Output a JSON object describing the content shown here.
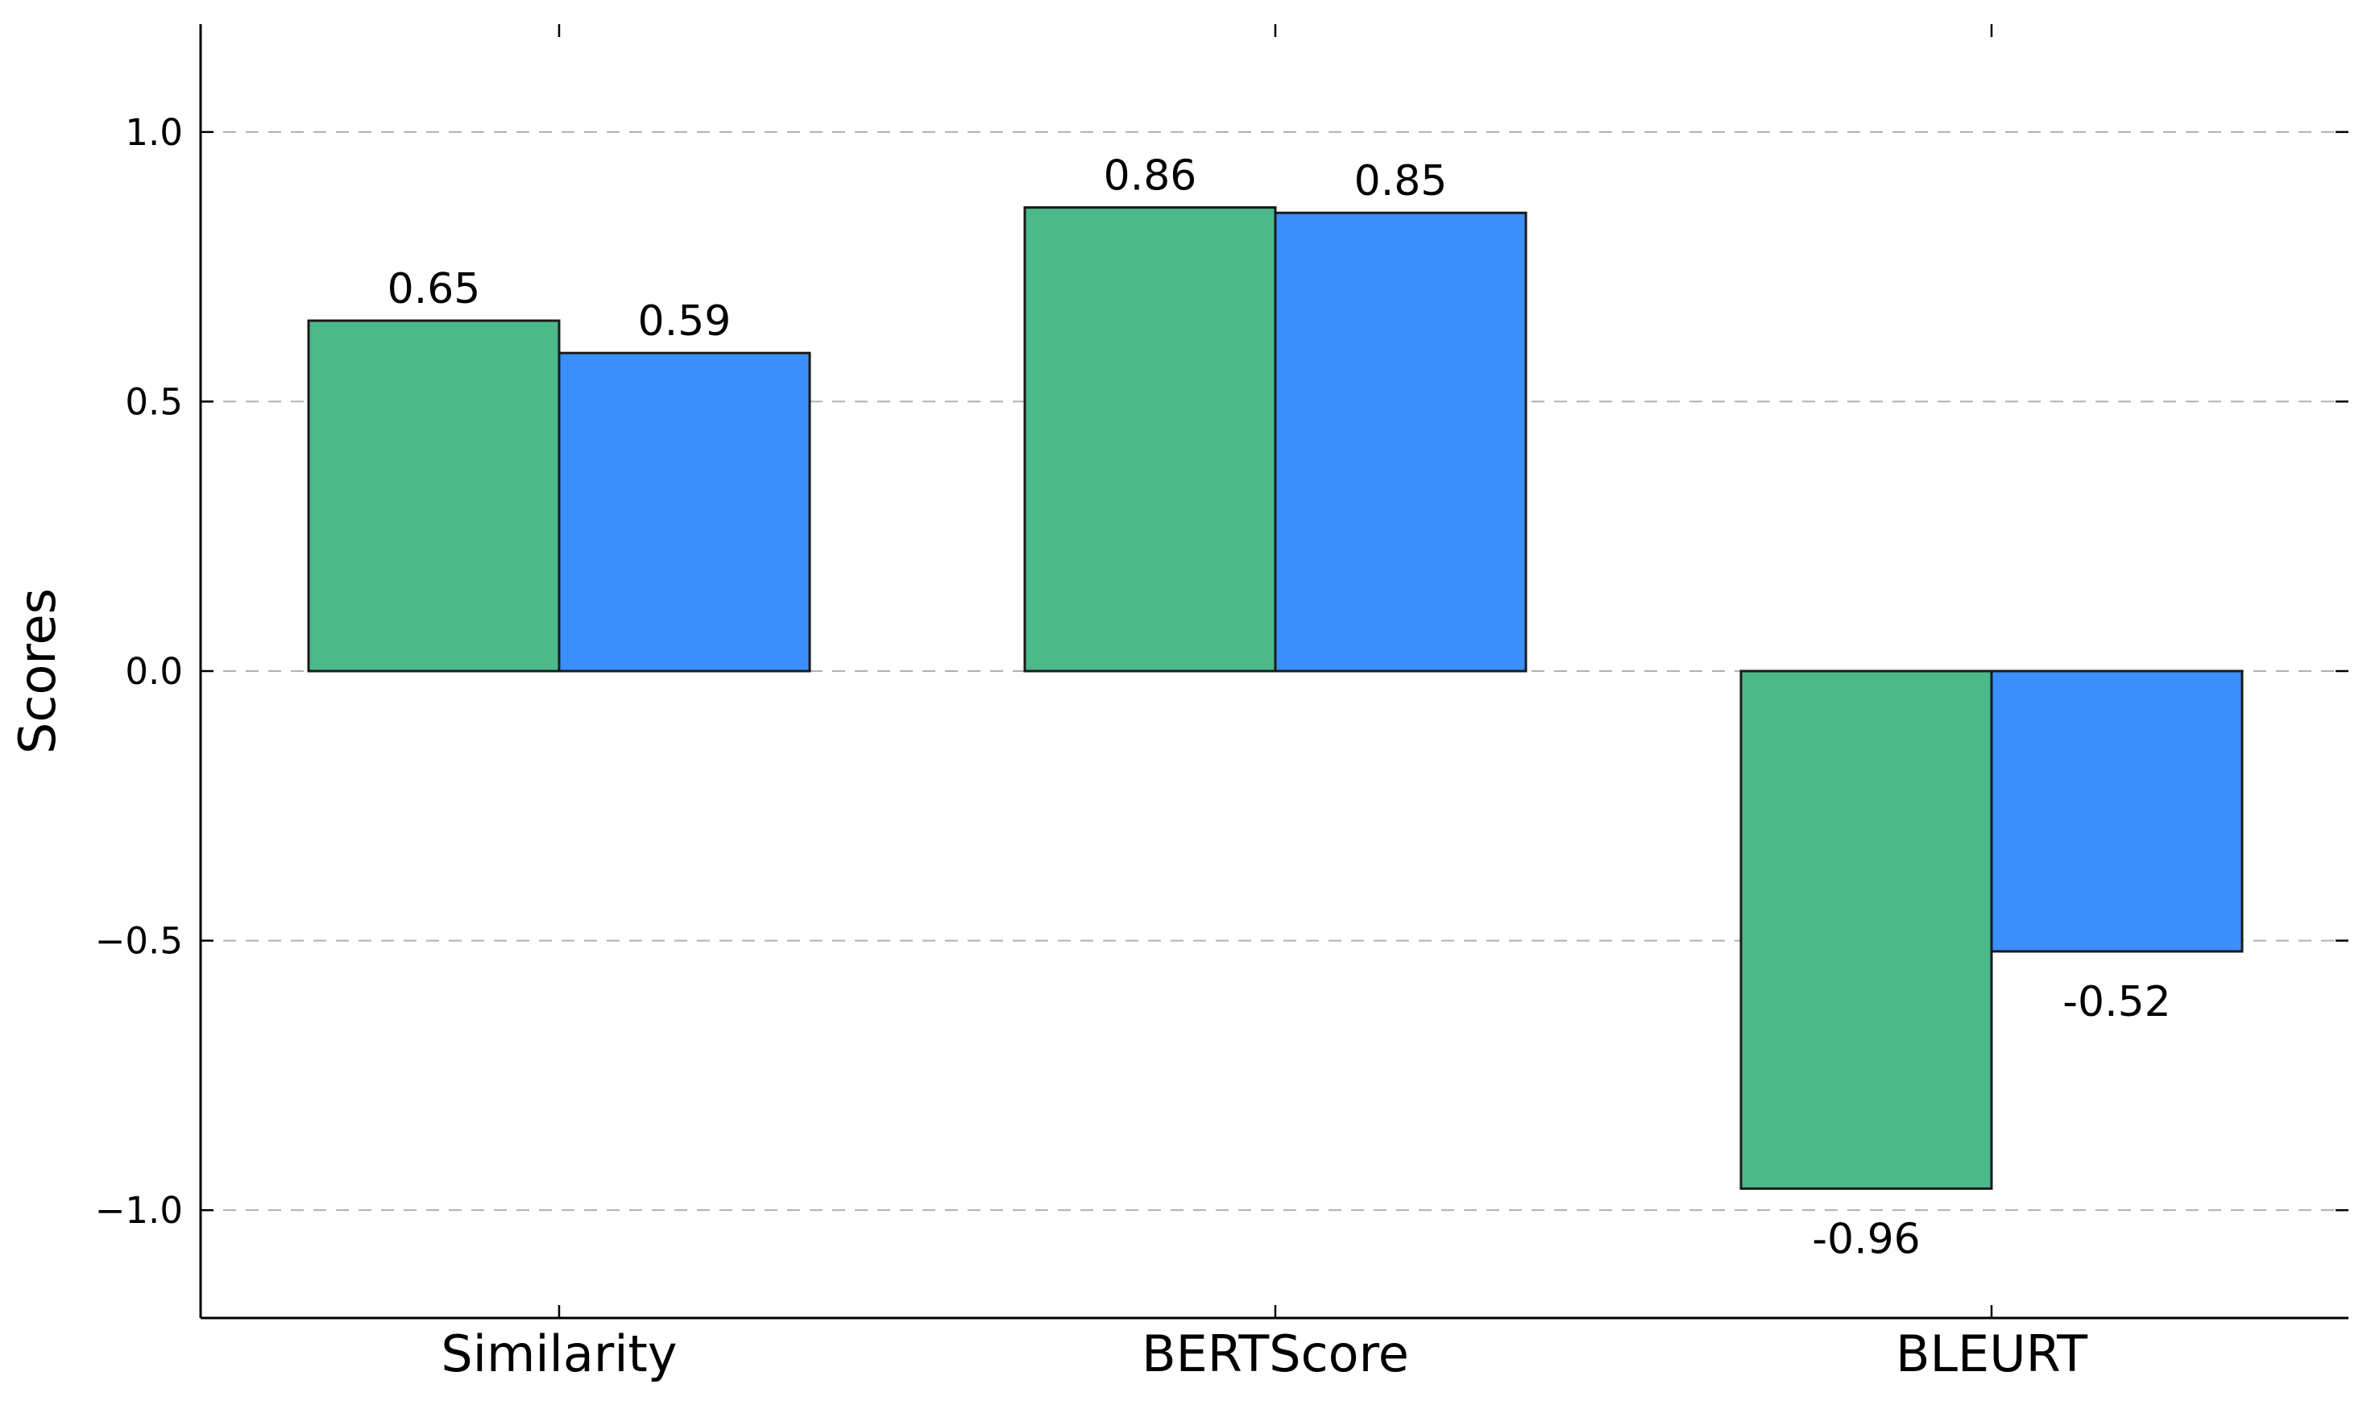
{
  "chart_data": {
    "type": "bar",
    "title": "",
    "xlabel": "",
    "ylabel": "Scores",
    "categories": [
      "Similarity",
      "BERTScore",
      "BLEURT"
    ],
    "series": [
      {
        "values": [
          0.65,
          0.86,
          -0.96
        ],
        "labels": [
          "0.65",
          "0.86",
          "-0.96"
        ],
        "color": "#4bb98a"
      },
      {
        "values": [
          0.59,
          0.85,
          -0.52
        ],
        "labels": [
          "0.59",
          "0.85",
          "-0.52"
        ],
        "color": "#3a8ffd"
      }
    ],
    "ylim": [
      -1.2,
      1.2
    ],
    "yticks": [
      1.0,
      0.5,
      0.0,
      -0.5,
      -1.0
    ],
    "ytick_labels": [
      "1.0",
      "0.5",
      "0.0",
      "−0.5",
      "−1.0"
    ],
    "grid": "horizontal dashed",
    "legend": "none"
  }
}
